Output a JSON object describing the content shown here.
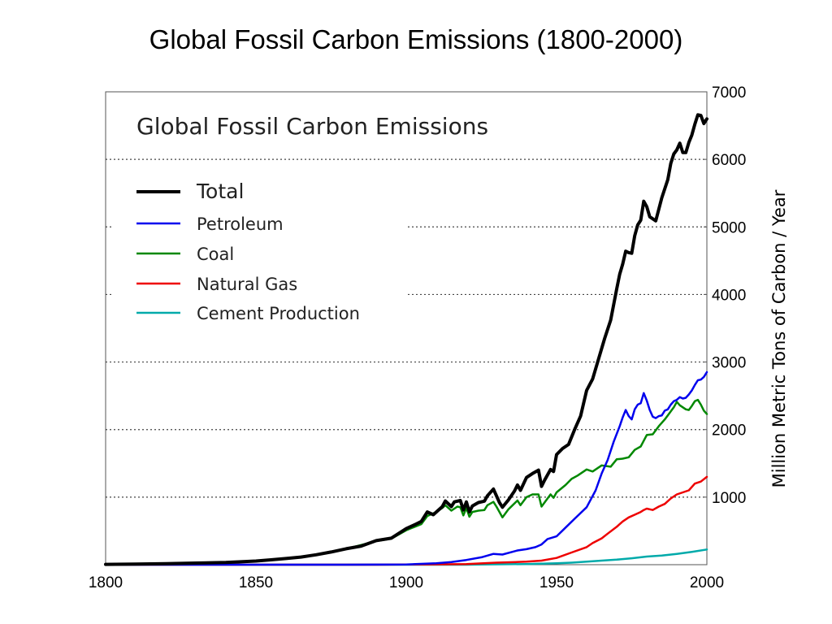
{
  "slide": {
    "title": "Global Fossil Carbon Emissions (1800-2000)"
  },
  "chart_data": {
    "type": "line",
    "title": "Global Fossil Carbon Emissions",
    "xlabel": "",
    "ylabel": "Million Metric Tons of Carbon / Year",
    "xlim": [
      1800,
      2000
    ],
    "ylim": [
      0,
      7000
    ],
    "x_ticks": [
      "1800",
      "1850",
      "1900",
      "1950",
      "2000"
    ],
    "y_ticks": [
      "1000",
      "2000",
      "3000",
      "4000",
      "5000",
      "6000",
      "7000"
    ],
    "y_axis_side": "right",
    "grid": "horizontal dotted",
    "legend_position": "top-left",
    "series": [
      {
        "name": "Total",
        "color": "#000000",
        "width": 4,
        "points": [
          [
            1800,
            5
          ],
          [
            1810,
            10
          ],
          [
            1820,
            14
          ],
          [
            1830,
            24
          ],
          [
            1840,
            33
          ],
          [
            1850,
            54
          ],
          [
            1855,
            72
          ],
          [
            1860,
            91
          ],
          [
            1865,
            113
          ],
          [
            1870,
            147
          ],
          [
            1875,
            188
          ],
          [
            1880,
            236
          ],
          [
            1885,
            276
          ],
          [
            1890,
            356
          ],
          [
            1895,
            392
          ],
          [
            1900,
            534
          ],
          [
            1903,
            595
          ],
          [
            1905,
            640
          ],
          [
            1907,
            780
          ],
          [
            1909,
            740
          ],
          [
            1912,
            860
          ],
          [
            1913,
            943
          ],
          [
            1915,
            860
          ],
          [
            1916,
            930
          ],
          [
            1918,
            950
          ],
          [
            1919,
            810
          ],
          [
            1920,
            930
          ],
          [
            1921,
            780
          ],
          [
            1922,
            870
          ],
          [
            1924,
            920
          ],
          [
            1926,
            940
          ],
          [
            1927,
            1020
          ],
          [
            1929,
            1120
          ],
          [
            1930,
            1020
          ],
          [
            1931,
            920
          ],
          [
            1932,
            850
          ],
          [
            1934,
            960
          ],
          [
            1936,
            1090
          ],
          [
            1937,
            1180
          ],
          [
            1938,
            1100
          ],
          [
            1940,
            1290
          ],
          [
            1942,
            1350
          ],
          [
            1944,
            1400
          ],
          [
            1945,
            1160
          ],
          [
            1946,
            1250
          ],
          [
            1948,
            1410
          ],
          [
            1949,
            1380
          ],
          [
            1950,
            1630
          ],
          [
            1952,
            1720
          ],
          [
            1954,
            1780
          ],
          [
            1956,
            2000
          ],
          [
            1958,
            2200
          ],
          [
            1960,
            2580
          ],
          [
            1962,
            2750
          ],
          [
            1964,
            3050
          ],
          [
            1966,
            3350
          ],
          [
            1968,
            3620
          ],
          [
            1970,
            4080
          ],
          [
            1971,
            4300
          ],
          [
            1972,
            4450
          ],
          [
            1973,
            4640
          ],
          [
            1974,
            4620
          ],
          [
            1975,
            4610
          ],
          [
            1976,
            4870
          ],
          [
            1977,
            5030
          ],
          [
            1978,
            5100
          ],
          [
            1979,
            5380
          ],
          [
            1980,
            5300
          ],
          [
            1981,
            5150
          ],
          [
            1983,
            5090
          ],
          [
            1985,
            5430
          ],
          [
            1987,
            5700
          ],
          [
            1988,
            5940
          ],
          [
            1989,
            6080
          ],
          [
            1990,
            6140
          ],
          [
            1991,
            6240
          ],
          [
            1992,
            6100
          ],
          [
            1993,
            6100
          ],
          [
            1994,
            6250
          ],
          [
            1995,
            6360
          ],
          [
            1996,
            6520
          ],
          [
            1997,
            6660
          ],
          [
            1998,
            6650
          ],
          [
            1999,
            6530
          ],
          [
            2000,
            6600
          ]
        ]
      },
      {
        "name": "Petroleum",
        "color": "#0000ee",
        "width": 2.5,
        "points": [
          [
            1800,
            0
          ],
          [
            1880,
            0
          ],
          [
            1900,
            4
          ],
          [
            1910,
            20
          ],
          [
            1915,
            40
          ],
          [
            1920,
            70
          ],
          [
            1925,
            110
          ],
          [
            1929,
            160
          ],
          [
            1932,
            150
          ],
          [
            1937,
            210
          ],
          [
            1940,
            230
          ],
          [
            1943,
            260
          ],
          [
            1945,
            300
          ],
          [
            1947,
            380
          ],
          [
            1950,
            420
          ],
          [
            1953,
            550
          ],
          [
            1956,
            680
          ],
          [
            1960,
            850
          ],
          [
            1963,
            1100
          ],
          [
            1965,
            1350
          ],
          [
            1967,
            1550
          ],
          [
            1969,
            1820
          ],
          [
            1971,
            2050
          ],
          [
            1972,
            2180
          ],
          [
            1973,
            2290
          ],
          [
            1974,
            2200
          ],
          [
            1975,
            2150
          ],
          [
            1976,
            2300
          ],
          [
            1977,
            2370
          ],
          [
            1978,
            2390
          ],
          [
            1979,
            2540
          ],
          [
            1980,
            2430
          ],
          [
            1981,
            2290
          ],
          [
            1982,
            2190
          ],
          [
            1983,
            2170
          ],
          [
            1984,
            2200
          ],
          [
            1985,
            2210
          ],
          [
            1986,
            2280
          ],
          [
            1987,
            2300
          ],
          [
            1988,
            2370
          ],
          [
            1989,
            2420
          ],
          [
            1990,
            2440
          ],
          [
            1991,
            2480
          ],
          [
            1992,
            2460
          ],
          [
            1993,
            2470
          ],
          [
            1994,
            2520
          ],
          [
            1995,
            2580
          ],
          [
            1996,
            2660
          ],
          [
            1997,
            2730
          ],
          [
            1998,
            2740
          ],
          [
            1999,
            2780
          ],
          [
            2000,
            2850
          ]
        ]
      },
      {
        "name": "Coal",
        "color": "#008800",
        "width": 2.5,
        "points": [
          [
            1800,
            5
          ],
          [
            1810,
            10
          ],
          [
            1820,
            14
          ],
          [
            1830,
            24
          ],
          [
            1840,
            33
          ],
          [
            1850,
            54
          ],
          [
            1860,
            91
          ],
          [
            1870,
            147
          ],
          [
            1880,
            233
          ],
          [
            1890,
            350
          ],
          [
            1895,
            385
          ],
          [
            1900,
            510
          ],
          [
            1905,
            600
          ],
          [
            1907,
            720
          ],
          [
            1910,
            780
          ],
          [
            1912,
            840
          ],
          [
            1913,
            880
          ],
          [
            1915,
            800
          ],
          [
            1917,
            860
          ],
          [
            1918,
            850
          ],
          [
            1919,
            730
          ],
          [
            1920,
            840
          ],
          [
            1921,
            710
          ],
          [
            1922,
            780
          ],
          [
            1924,
            800
          ],
          [
            1926,
            810
          ],
          [
            1927,
            880
          ],
          [
            1929,
            930
          ],
          [
            1930,
            860
          ],
          [
            1932,
            700
          ],
          [
            1934,
            820
          ],
          [
            1937,
            950
          ],
          [
            1938,
            880
          ],
          [
            1940,
            1000
          ],
          [
            1942,
            1040
          ],
          [
            1944,
            1040
          ],
          [
            1945,
            860
          ],
          [
            1946,
            920
          ],
          [
            1948,
            1040
          ],
          [
            1949,
            990
          ],
          [
            1950,
            1070
          ],
          [
            1953,
            1180
          ],
          [
            1955,
            1270
          ],
          [
            1957,
            1320
          ],
          [
            1960,
            1410
          ],
          [
            1962,
            1380
          ],
          [
            1965,
            1470
          ],
          [
            1968,
            1450
          ],
          [
            1970,
            1560
          ],
          [
            1972,
            1570
          ],
          [
            1974,
            1590
          ],
          [
            1976,
            1700
          ],
          [
            1978,
            1750
          ],
          [
            1980,
            1920
          ],
          [
            1982,
            1930
          ],
          [
            1984,
            2050
          ],
          [
            1986,
            2150
          ],
          [
            1988,
            2270
          ],
          [
            1989,
            2330
          ],
          [
            1990,
            2410
          ],
          [
            1991,
            2360
          ],
          [
            1992,
            2330
          ],
          [
            1993,
            2300
          ],
          [
            1994,
            2290
          ],
          [
            1995,
            2350
          ],
          [
            1996,
            2420
          ],
          [
            1997,
            2440
          ],
          [
            1998,
            2370
          ],
          [
            1999,
            2280
          ],
          [
            2000,
            2230
          ]
        ]
      },
      {
        "name": "Natural Gas",
        "color": "#ee0000",
        "width": 2.5,
        "points": [
          [
            1800,
            0
          ],
          [
            1890,
            0
          ],
          [
            1910,
            5
          ],
          [
            1920,
            10
          ],
          [
            1930,
            30
          ],
          [
            1940,
            45
          ],
          [
            1945,
            60
          ],
          [
            1950,
            100
          ],
          [
            1955,
            180
          ],
          [
            1960,
            260
          ],
          [
            1962,
            320
          ],
          [
            1965,
            390
          ],
          [
            1967,
            460
          ],
          [
            1970,
            560
          ],
          [
            1972,
            640
          ],
          [
            1974,
            700
          ],
          [
            1976,
            740
          ],
          [
            1978,
            780
          ],
          [
            1979,
            810
          ],
          [
            1980,
            830
          ],
          [
            1982,
            810
          ],
          [
            1984,
            860
          ],
          [
            1986,
            900
          ],
          [
            1988,
            980
          ],
          [
            1990,
            1040
          ],
          [
            1992,
            1070
          ],
          [
            1994,
            1100
          ],
          [
            1996,
            1200
          ],
          [
            1998,
            1230
          ],
          [
            2000,
            1300
          ]
        ]
      },
      {
        "name": "Cement Production",
        "color": "#00aaaa",
        "width": 2.5,
        "points": [
          [
            1800,
            0
          ],
          [
            1920,
            0
          ],
          [
            1928,
            5
          ],
          [
            1940,
            10
          ],
          [
            1950,
            20
          ],
          [
            1955,
            30
          ],
          [
            1960,
            45
          ],
          [
            1965,
            60
          ],
          [
            1970,
            75
          ],
          [
            1975,
            95
          ],
          [
            1980,
            120
          ],
          [
            1985,
            135
          ],
          [
            1990,
            160
          ],
          [
            1995,
            190
          ],
          [
            2000,
            225
          ]
        ]
      }
    ]
  }
}
